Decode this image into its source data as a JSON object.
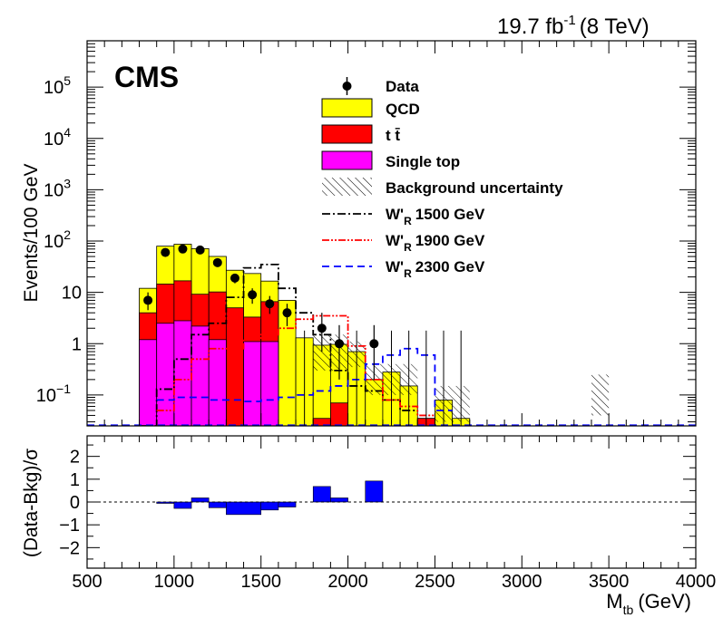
{
  "header": {
    "lumi": "19.7 fb",
    "lumi_exp": "-1",
    "energy": "(8 TeV)",
    "experiment": "CMS"
  },
  "colors": {
    "qcd": "#ffff00",
    "ttbar": "#ff0000",
    "single_top": "#ff00ff",
    "ratio": "#0000ff",
    "wr1500": "#000000",
    "wr1900": "#ff0000",
    "wr2300": "#0000ff"
  },
  "chart_data": [
    {
      "type": "bar",
      "panel": "main",
      "stacked": true,
      "ylabel": "Events/100 GeV",
      "yscale": "log",
      "ylim": [
        0.025,
        800000
      ],
      "xlim": [
        500,
        4000
      ],
      "x_edges": [
        800,
        900,
        1000,
        1100,
        1200,
        1300,
        1400,
        1500,
        1600,
        1700,
        1800,
        1900,
        2000,
        2100,
        2200,
        2300,
        2400,
        2500,
        2600,
        2700
      ],
      "y_tick_labels": [
        {
          "value": 0.1,
          "base": "10",
          "exp": "−1"
        },
        {
          "value": 1,
          "base": "1",
          "exp": ""
        },
        {
          "value": 10,
          "base": "10",
          "exp": ""
        },
        {
          "value": 100,
          "base": "10",
          "exp": "2"
        },
        {
          "value": 1000,
          "base": "10",
          "exp": "3"
        },
        {
          "value": 10000,
          "base": "10",
          "exp": "4"
        },
        {
          "value": 100000,
          "base": "10",
          "exp": "5"
        }
      ],
      "series": [
        {
          "name": "Single top",
          "key": "single_top",
          "values": [
            1.2,
            2.5,
            2.8,
            2.2,
            1.2,
            0.025,
            1.1,
            1.1,
            0.025,
            0.025,
            0.025,
            0.025,
            0.025,
            0.025,
            0.025,
            0.025,
            0.025,
            0.025,
            0.025
          ]
        },
        {
          "name": "t t̄",
          "key": "ttbar",
          "values": [
            2.8,
            12,
            14,
            7,
            9,
            5,
            2.2,
            5.5,
            0.025,
            0.025,
            0.035,
            0.07,
            0.025,
            0.025,
            0.025,
            0.025,
            0.035,
            0.025,
            0.025
          ]
        },
        {
          "name": "QCD",
          "key": "qcd",
          "values": [
            8,
            65,
            70,
            62,
            40,
            22,
            20,
            10,
            7,
            1.3,
            0.9,
            0.9,
            0.7,
            0.2,
            0.28,
            0.15,
            0.025,
            0.08,
            0.035
          ]
        }
      ],
      "uncertainty": {
        "name": "Background uncertainty",
        "bins": [
          {
            "x0": 1800,
            "x1": 2000,
            "lo": 0.3,
            "hi": 1.5
          },
          {
            "x0": 2000,
            "x1": 2100,
            "lo": 0.35,
            "hi": 1.1
          },
          {
            "x0": 2100,
            "x1": 2400,
            "lo": 0.1,
            "hi": 0.4
          },
          {
            "x0": 2500,
            "x1": 2700,
            "lo": 0.03,
            "hi": 0.15
          },
          {
            "x0": 3400,
            "x1": 3500,
            "lo": 0.04,
            "hi": 0.25
          }
        ]
      },
      "data": {
        "name": "Data",
        "points": [
          {
            "x": 850,
            "y": 7,
            "lo": 4.5,
            "hi": 10
          },
          {
            "x": 950,
            "y": 60,
            "lo": 52,
            "hi": 68
          },
          {
            "x": 1050,
            "y": 70,
            "lo": 62,
            "hi": 78
          },
          {
            "x": 1150,
            "y": 67,
            "lo": 59,
            "hi": 75
          },
          {
            "x": 1250,
            "y": 38,
            "lo": 32,
            "hi": 44
          },
          {
            "x": 1350,
            "y": 19,
            "lo": 15,
            "hi": 23
          },
          {
            "x": 1450,
            "y": 9,
            "lo": 6,
            "hi": 12
          },
          {
            "x": 1550,
            "y": 6,
            "lo": 3.8,
            "hi": 8.5
          },
          {
            "x": 1650,
            "y": 4,
            "lo": 2.2,
            "hi": 6
          },
          {
            "x": 1850,
            "y": 2,
            "lo": 0.7,
            "hi": 4
          },
          {
            "x": 1950,
            "y": 1,
            "lo": 0.2,
            "hi": 2.3
          },
          {
            "x": 2150,
            "y": 1,
            "lo": 0.2,
            "hi": 2.3
          }
        ],
        "empty_bin_bars": [
          {
            "x": 1750,
            "hi": 1.8
          },
          {
            "x": 2050,
            "hi": 1.8
          },
          {
            "x": 2250,
            "hi": 1.8
          },
          {
            "x": 2350,
            "hi": 1.8
          },
          {
            "x": 2450,
            "hi": 1.8
          },
          {
            "x": 2550,
            "hi": 1.8
          },
          {
            "x": 2650,
            "hi": 1.8
          }
        ]
      },
      "signals": [
        {
          "name": "W'",
          "sub": "R",
          "mass_label": "1500 GeV",
          "key": "wr1500",
          "dash": "9,3,2,3",
          "edges": [
            800,
            900,
            1000,
            1100,
            1200,
            1300,
            1400,
            1500,
            1600,
            1700,
            1800,
            1900,
            2000,
            2100,
            2200,
            2300,
            2400
          ],
          "values": [
            0.025,
            0.13,
            0.5,
            1.5,
            2.5,
            8,
            30,
            35,
            12,
            4,
            1.5,
            0.3,
            0.15,
            0.12,
            0.08,
            0.05
          ]
        },
        {
          "name": "W'",
          "sub": "R",
          "mass_label": "1900 GeV",
          "key": "wr1900",
          "dash": "8,2,2,2,2,2",
          "edges": [
            900,
            1000,
            1100,
            1200,
            1300,
            1400,
            1500,
            1600,
            1700,
            1800,
            1900,
            2000,
            2100,
            2200,
            2300,
            2400,
            2500
          ],
          "values": [
            0.05,
            0.2,
            0.5,
            0.8,
            0.8,
            1.2,
            1.5,
            2,
            3,
            3.5,
            3.5,
            0.9,
            0.2,
            0.08,
            0.06,
            0.04
          ]
        },
        {
          "name": "W'",
          "sub": "R",
          "mass_label": "2300 GeV",
          "key": "wr2300",
          "dash": "8,5",
          "edges": [
            900,
            1000,
            1100,
            1200,
            1300,
            1400,
            1500,
            1600,
            1700,
            1800,
            1900,
            2000,
            2100,
            2200,
            2300,
            2400,
            2500,
            2600
          ],
          "values": [
            0.08,
            0.09,
            0.09,
            0.08,
            0.08,
            0.075,
            0.08,
            0.09,
            0.1,
            0.12,
            0.15,
            0.2,
            0.4,
            0.6,
            0.8,
            0.6,
            0.05
          ]
        }
      ]
    },
    {
      "type": "bar",
      "panel": "ratio",
      "xlabel_main": "M",
      "xlabel_sub": "tb",
      "xlabel_unit": "(GeV)",
      "ylabel": "(Data-Bkg)/σ",
      "ylim": [
        -2.9,
        2.9
      ],
      "xlim": [
        500,
        4000
      ],
      "y_ticks": [
        -2,
        -1,
        0,
        1,
        2
      ],
      "y_tick_labels": [
        "−2",
        "−1",
        "0",
        "1",
        "2"
      ],
      "x_ticks": [
        500,
        1000,
        1500,
        2000,
        2500,
        3000,
        3500,
        4000
      ],
      "x_tick_labels": [
        "500",
        "1000",
        "1500",
        "2000",
        "2500",
        "3000",
        "3500",
        "4000"
      ],
      "bins": [
        {
          "x0": 900,
          "x1": 1000,
          "value": -0.05
        },
        {
          "x0": 1000,
          "x1": 1100,
          "value": -0.28
        },
        {
          "x0": 1100,
          "x1": 1200,
          "value": 0.18
        },
        {
          "x0": 1200,
          "x1": 1300,
          "value": -0.25
        },
        {
          "x0": 1300,
          "x1": 1500,
          "value": -0.55
        },
        {
          "x0": 1500,
          "x1": 1600,
          "value": -0.35
        },
        {
          "x0": 1600,
          "x1": 1700,
          "value": -0.22
        },
        {
          "x0": 1800,
          "x1": 1900,
          "value": 0.68
        },
        {
          "x0": 1900,
          "x1": 2000,
          "value": 0.18
        },
        {
          "x0": 2100,
          "x1": 2200,
          "value": 0.92
        }
      ]
    }
  ]
}
